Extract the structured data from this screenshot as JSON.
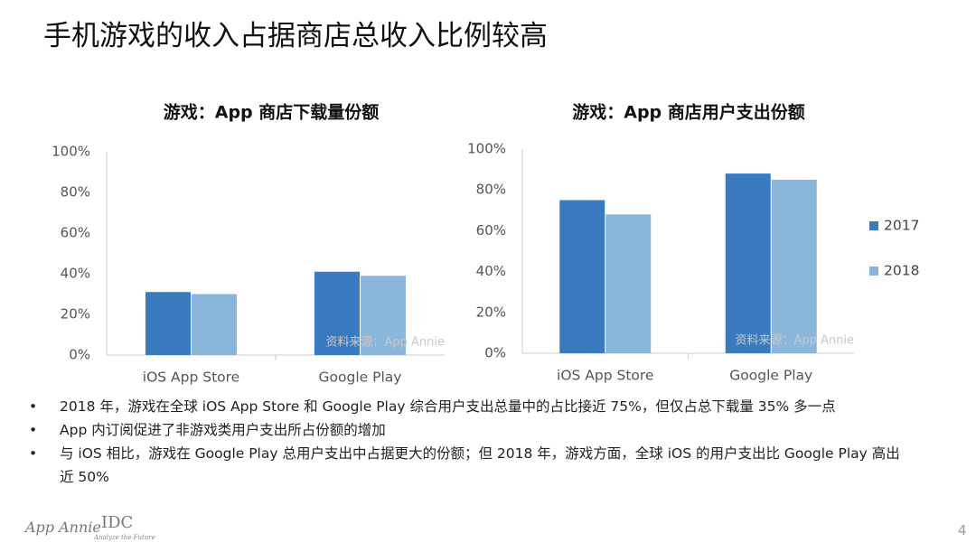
{
  "title": "手机游戏的收入占据商店总收入比例较高",
  "chart_data": [
    {
      "type": "bar",
      "title": "游戏：App 商店下载量份额",
      "categories": [
        "iOS App Store",
        "Google Play"
      ],
      "series": [
        {
          "color": "#3a7bbf",
          "values": [
            31,
            41
          ]
        },
        {
          "color": "#8ab6dc",
          "values": [
            30,
            39
          ]
        }
      ],
      "ylim": [
        0,
        100
      ],
      "yticks": [
        {
          "value": 0,
          "label": "0%"
        },
        {
          "value": 20,
          "label": "20%"
        },
        {
          "value": 40,
          "label": "40%"
        },
        {
          "value": 60,
          "label": "60%"
        },
        {
          "value": 80,
          "label": "80%"
        },
        {
          "value": 100,
          "label": "100%"
        }
      ],
      "grid": false,
      "annotation": "资料来源：App Annie"
    },
    {
      "type": "bar",
      "title": "游戏：App 商店用户支出份额",
      "categories": [
        "iOS App Store",
        "Google Play"
      ],
      "series": [
        {
          "name": "2017",
          "color": "#3a7bbf",
          "values": [
            75,
            88
          ]
        },
        {
          "name": "2018",
          "color": "#8ab6dc",
          "values": [
            68,
            85
          ]
        }
      ],
      "ylim": [
        0,
        100
      ],
      "yticks": [
        {
          "value": 0,
          "label": "0%"
        },
        {
          "value": 20,
          "label": "20%"
        },
        {
          "value": 40,
          "label": "40%"
        },
        {
          "value": 60,
          "label": "60%"
        },
        {
          "value": 80,
          "label": "80%"
        },
        {
          "value": 100,
          "label": "100%"
        }
      ],
      "grid": false,
      "legend": "right",
      "annotation": "资料来源：App Annie"
    }
  ],
  "bullets": [
    "2018 年，游戏在全球 iOS App Store 和 Google Play 综合用户支出总量中的占比接近 75%，但仅占总下载量 35% 多一点",
    "App 内订阅促进了非游戏类用户支出所占份额的增加",
    "与 iOS 相比，游戏在 Google Play 总用户支出中占据更大的份额；但 2018 年，游戏方面，全球 iOS 的用户支出比 Google Play 高出近 50%"
  ],
  "footer": {
    "logo1": "App Annie",
    "logo2": "IDC",
    "logo2_tagline": "Analyze the Future",
    "page": "4"
  }
}
